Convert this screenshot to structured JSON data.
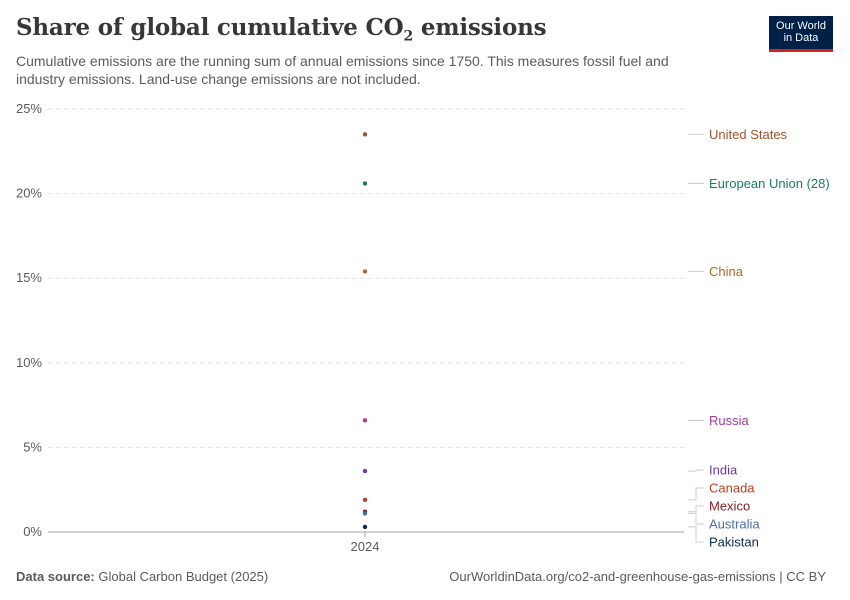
{
  "header": {
    "title_main": "Share of global cumulative CO",
    "title_sub": "2",
    "title_end": " emissions",
    "subtitle": "Cumulative emissions are the running sum of annual emissions since 1750. This measures fossil fuel and industry emissions. Land-use change emissions are not included."
  },
  "logo": {
    "line1": "Our World",
    "line2": "in Data",
    "bg_color": "#002147",
    "accent_color": "#ce261e"
  },
  "footer": {
    "source_label": "Data source:",
    "source_text": "Global Carbon Budget (2025)",
    "url_text": "OurWorldinData.org/co2-and-greenhouse-gas-emissions | CC BY"
  },
  "chart_data": {
    "type": "scatter",
    "x": [
      "2024"
    ],
    "yticks": [
      "0%",
      "5%",
      "10%",
      "15%",
      "20%",
      "25%"
    ],
    "ylim": [
      0,
      25
    ],
    "grid": true,
    "series": [
      {
        "name": "United States",
        "values": [
          23.5
        ],
        "color": "#a2522c"
      },
      {
        "name": "European Union (28)",
        "values": [
          20.6
        ],
        "color": "#1a7a6a"
      },
      {
        "name": "China",
        "values": [
          15.4
        ],
        "color": "#b06a26"
      },
      {
        "name": "Russia",
        "values": [
          6.6
        ],
        "color": "#a63a9e"
      },
      {
        "name": "India",
        "values": [
          3.6
        ],
        "color": "#6c3a94"
      },
      {
        "name": "Canada",
        "values": [
          1.9
        ],
        "color": "#b8401e"
      },
      {
        "name": "Mexico",
        "values": [
          1.2
        ],
        "color": "#8a1a2a"
      },
      {
        "name": "Australia",
        "values": [
          1.1
        ],
        "color": "#4a6fa5"
      },
      {
        "name": "Pakistan",
        "values": [
          0.3
        ],
        "color": "#0b2a4a"
      }
    ]
  }
}
